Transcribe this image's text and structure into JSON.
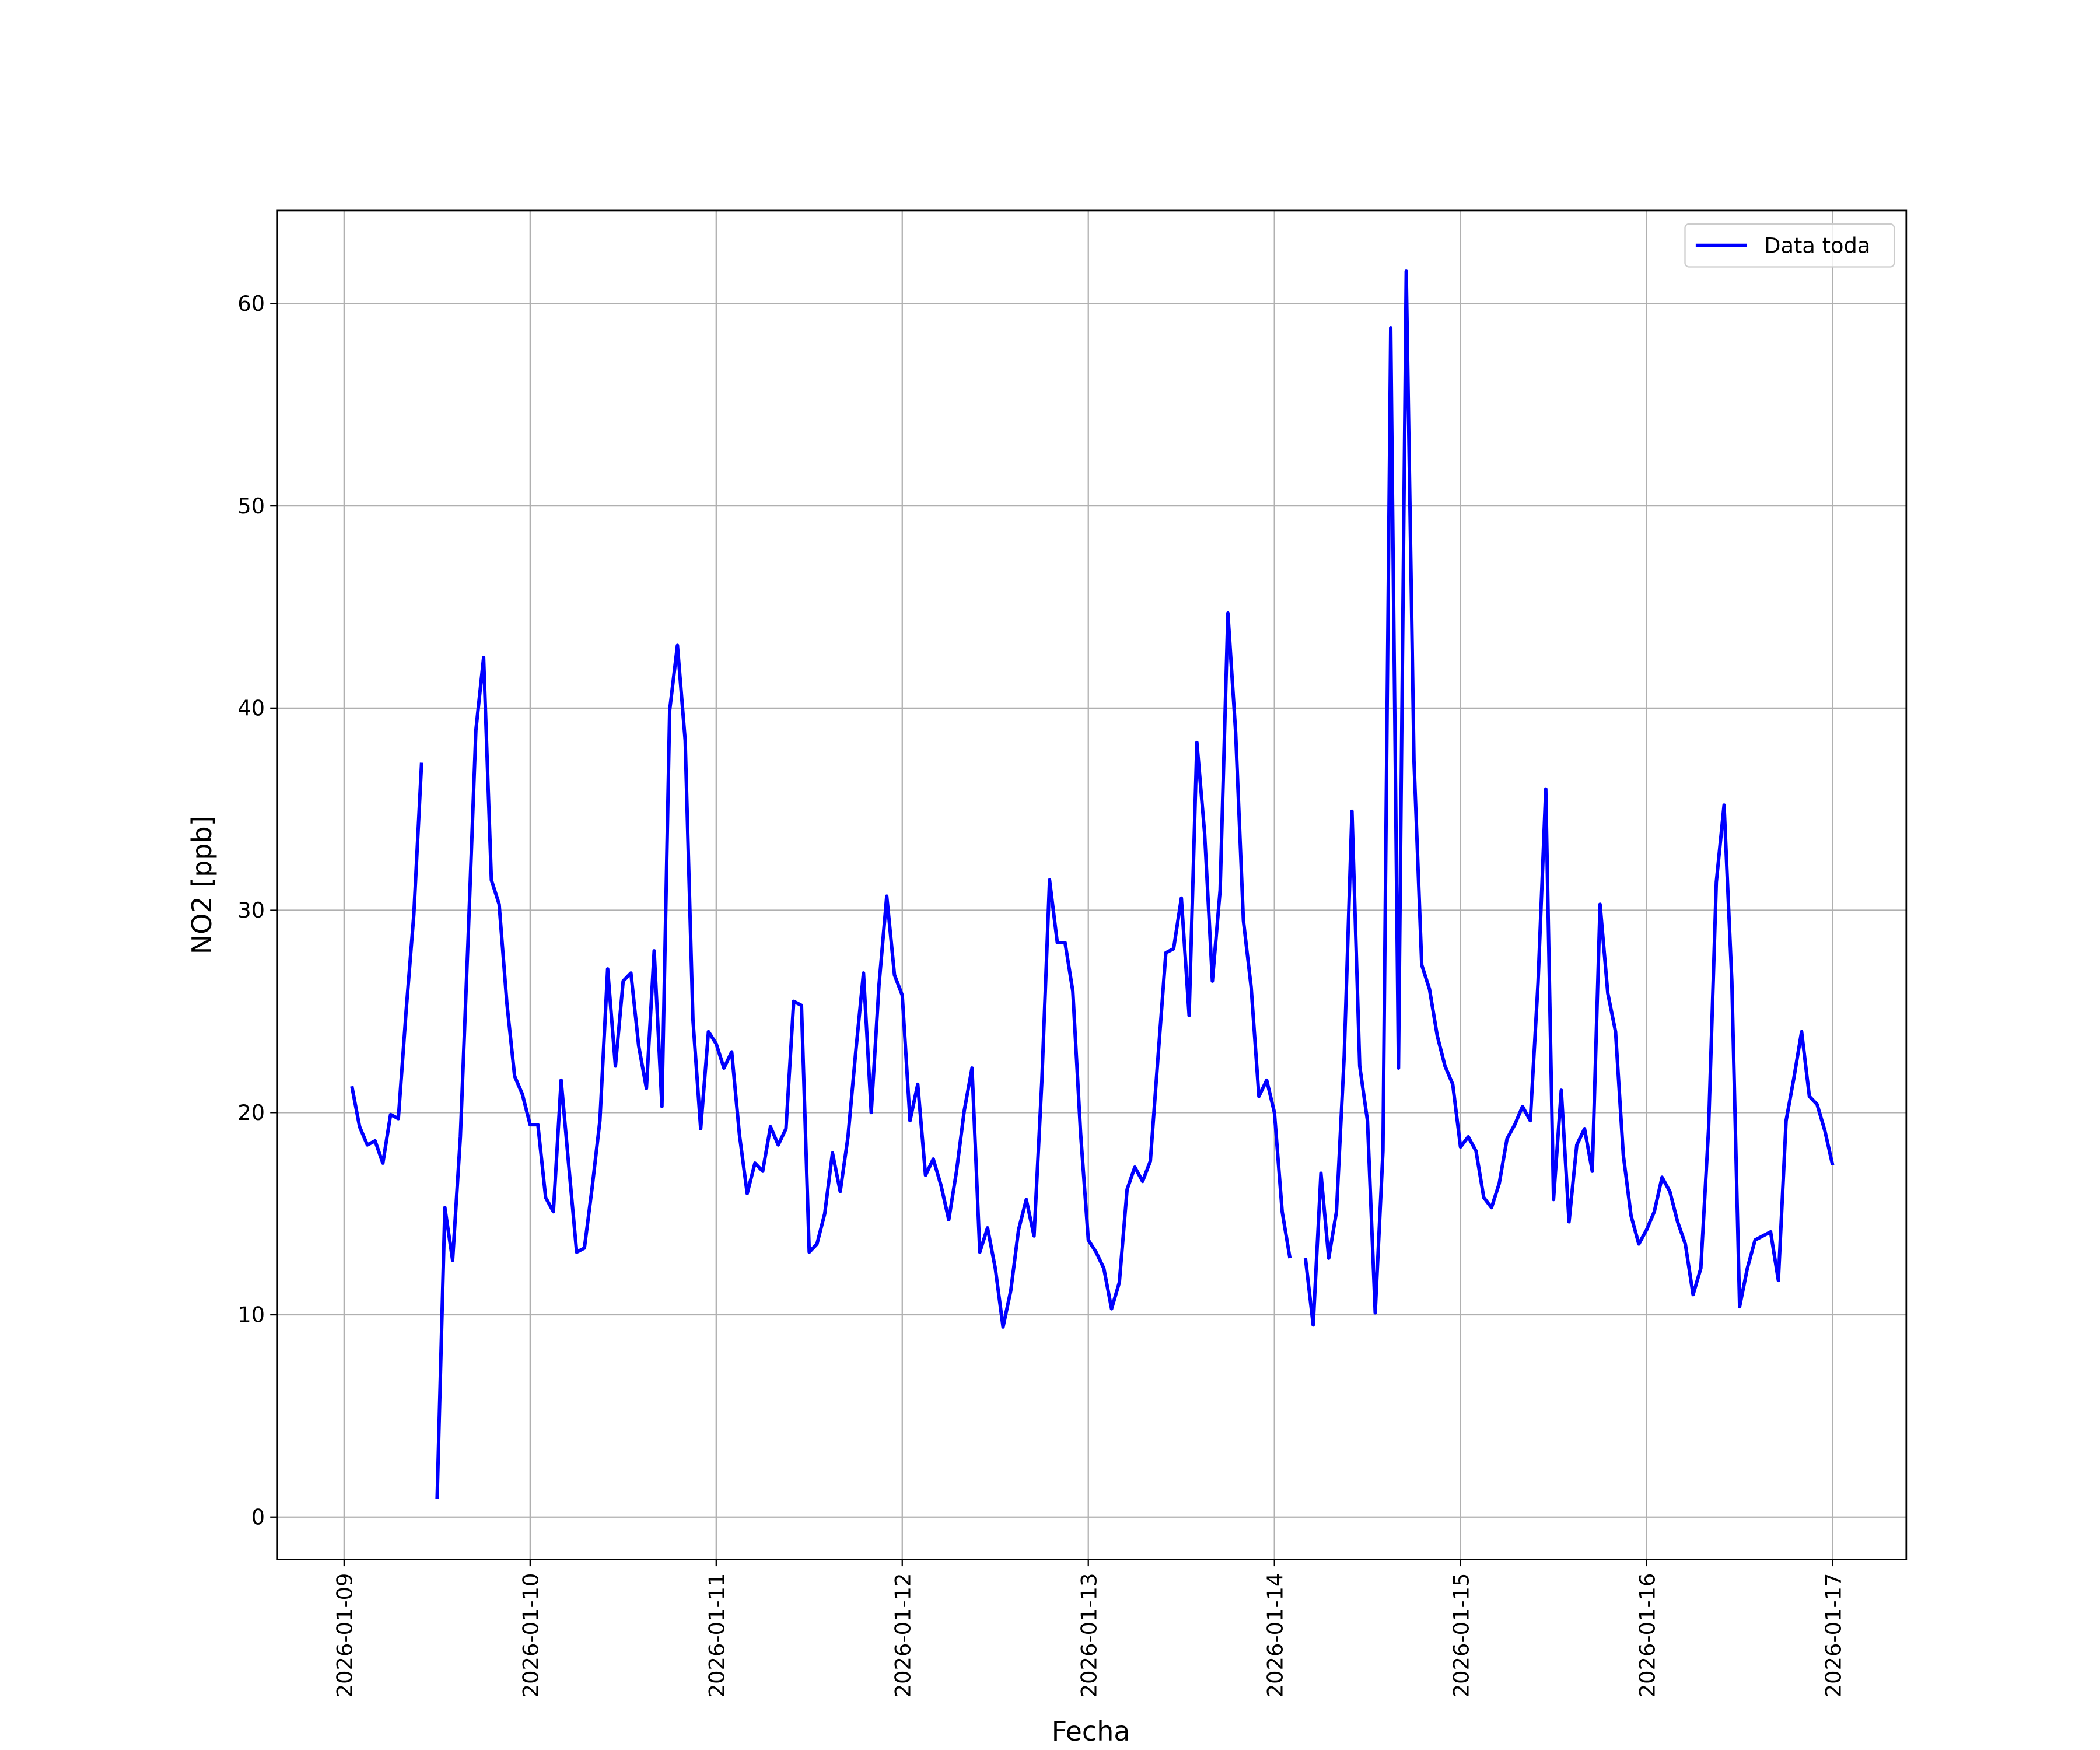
{
  "chart_data": {
    "type": "line",
    "xlabel": "Fecha",
    "ylabel": "NO2 [ppb]",
    "xlim": [
      "2026-01-08 15:20",
      "2026-01-17 09:30"
    ],
    "xticks": [
      "2026-01-09",
      "2026-01-10",
      "2026-01-11",
      "2026-01-12",
      "2026-01-13",
      "2026-01-14",
      "2026-01-15",
      "2026-01-16",
      "2026-01-17"
    ],
    "ylim": [
      -2.1,
      64.6
    ],
    "yticks": [
      0,
      10,
      20,
      30,
      40,
      50,
      60
    ],
    "grid": true,
    "legend": "upper right",
    "x": [
      "2026-01-09 01:00",
      "2026-01-09 02:00",
      "2026-01-09 03:00",
      "2026-01-09 04:00",
      "2026-01-09 05:00",
      "2026-01-09 06:00",
      "2026-01-09 07:00",
      "2026-01-09 08:00",
      "2026-01-09 09:00",
      "2026-01-09 10:00",
      "2026-01-09 11:00",
      "2026-01-09 12:00",
      "2026-01-09 13:00",
      "2026-01-09 14:00",
      "2026-01-09 15:00",
      "2026-01-09 16:00",
      "2026-01-09 17:00",
      "2026-01-09 18:00",
      "2026-01-09 19:00",
      "2026-01-09 20:00",
      "2026-01-09 21:00",
      "2026-01-09 22:00",
      "2026-01-09 23:00",
      "2026-01-10 00:00",
      "2026-01-10 01:00",
      "2026-01-10 02:00",
      "2026-01-10 03:00",
      "2026-01-10 04:00",
      "2026-01-10 05:00",
      "2026-01-10 06:00",
      "2026-01-10 07:00",
      "2026-01-10 08:00",
      "2026-01-10 09:00",
      "2026-01-10 10:00",
      "2026-01-10 11:00",
      "2026-01-10 12:00",
      "2026-01-10 13:00",
      "2026-01-10 14:00",
      "2026-01-10 15:00",
      "2026-01-10 16:00",
      "2026-01-10 17:00",
      "2026-01-10 18:00",
      "2026-01-10 19:00",
      "2026-01-10 20:00",
      "2026-01-10 21:00",
      "2026-01-10 22:00",
      "2026-01-10 23:00",
      "2026-01-11 00:00",
      "2026-01-11 01:00",
      "2026-01-11 02:00",
      "2026-01-11 03:00",
      "2026-01-11 04:00",
      "2026-01-11 05:00",
      "2026-01-11 06:00",
      "2026-01-11 07:00",
      "2026-01-11 08:00",
      "2026-01-11 09:00",
      "2026-01-11 10:00",
      "2026-01-11 11:00",
      "2026-01-11 12:00",
      "2026-01-11 13:00",
      "2026-01-11 14:00",
      "2026-01-11 15:00",
      "2026-01-11 16:00",
      "2026-01-11 17:00",
      "2026-01-11 18:00",
      "2026-01-11 19:00",
      "2026-01-11 20:00",
      "2026-01-11 21:00",
      "2026-01-11 22:00",
      "2026-01-11 23:00",
      "2026-01-12 00:00",
      "2026-01-12 01:00",
      "2026-01-12 02:00",
      "2026-01-12 03:00",
      "2026-01-12 04:00",
      "2026-01-12 05:00",
      "2026-01-12 06:00",
      "2026-01-12 07:00",
      "2026-01-12 08:00",
      "2026-01-12 09:00",
      "2026-01-12 10:00",
      "2026-01-12 11:00",
      "2026-01-12 12:00",
      "2026-01-12 13:00",
      "2026-01-12 14:00",
      "2026-01-12 15:00",
      "2026-01-12 16:00",
      "2026-01-12 17:00",
      "2026-01-12 18:00",
      "2026-01-12 19:00",
      "2026-01-12 20:00",
      "2026-01-12 21:00",
      "2026-01-12 22:00",
      "2026-01-12 23:00",
      "2026-01-13 00:00",
      "2026-01-13 01:00",
      "2026-01-13 02:00",
      "2026-01-13 03:00",
      "2026-01-13 04:00",
      "2026-01-13 05:00",
      "2026-01-13 06:00",
      "2026-01-13 07:00",
      "2026-01-13 08:00",
      "2026-01-13 09:00",
      "2026-01-13 10:00",
      "2026-01-13 11:00",
      "2026-01-13 12:00",
      "2026-01-13 13:00",
      "2026-01-13 14:00",
      "2026-01-13 15:00",
      "2026-01-13 16:00",
      "2026-01-13 17:00",
      "2026-01-13 18:00",
      "2026-01-13 19:00",
      "2026-01-13 20:00",
      "2026-01-13 21:00",
      "2026-01-13 22:00",
      "2026-01-13 23:00",
      "2026-01-14 00:00",
      "2026-01-14 01:00",
      "2026-01-14 02:00",
      "2026-01-14 03:00",
      "2026-01-14 04:00",
      "2026-01-14 05:00",
      "2026-01-14 06:00",
      "2026-01-14 07:00",
      "2026-01-14 08:00",
      "2026-01-14 09:00",
      "2026-01-14 10:00",
      "2026-01-14 11:00",
      "2026-01-14 12:00",
      "2026-01-14 13:00",
      "2026-01-14 14:00",
      "2026-01-14 15:00",
      "2026-01-14 16:00",
      "2026-01-14 17:00",
      "2026-01-14 18:00",
      "2026-01-14 19:00",
      "2026-01-14 20:00",
      "2026-01-14 21:00",
      "2026-01-14 22:00",
      "2026-01-14 23:00",
      "2026-01-15 00:00",
      "2026-01-15 01:00",
      "2026-01-15 02:00",
      "2026-01-15 03:00",
      "2026-01-15 04:00",
      "2026-01-15 05:00",
      "2026-01-15 06:00",
      "2026-01-15 07:00",
      "2026-01-15 08:00",
      "2026-01-15 09:00",
      "2026-01-15 10:00",
      "2026-01-15 11:00",
      "2026-01-15 12:00",
      "2026-01-15 13:00",
      "2026-01-15 14:00",
      "2026-01-15 15:00",
      "2026-01-15 16:00",
      "2026-01-15 17:00",
      "2026-01-15 18:00",
      "2026-01-15 19:00",
      "2026-01-15 20:00",
      "2026-01-15 21:00",
      "2026-01-15 22:00",
      "2026-01-15 23:00",
      "2026-01-16 00:00",
      "2026-01-16 01:00",
      "2026-01-16 02:00",
      "2026-01-16 03:00",
      "2026-01-16 04:00",
      "2026-01-16 05:00",
      "2026-01-16 06:00",
      "2026-01-16 07:00",
      "2026-01-16 08:00",
      "2026-01-16 09:00",
      "2026-01-16 10:00",
      "2026-01-16 11:00",
      "2026-01-16 12:00",
      "2026-01-16 13:00",
      "2026-01-16 14:00",
      "2026-01-16 15:00",
      "2026-01-16 16:00",
      "2026-01-16 17:00",
      "2026-01-16 18:00",
      "2026-01-16 19:00",
      "2026-01-16 20:00",
      "2026-01-16 21:00",
      "2026-01-16 22:00",
      "2026-01-16 23:00",
      "2026-01-17 00:00"
    ],
    "series": [
      {
        "name": "Data toda",
        "color": "#0000ff",
        "values": [
          21.3,
          19.3,
          18.4,
          18.6,
          17.5,
          19.9,
          19.7,
          25.0,
          29.8,
          37.3,
          null,
          0.9,
          15.3,
          12.7,
          18.8,
          28.6,
          38.9,
          42.5,
          31.5,
          30.3,
          25.4,
          21.8,
          20.9,
          19.4,
          19.4,
          15.8,
          15.1,
          21.6,
          17.3,
          13.1,
          13.3,
          16.3,
          19.6,
          27.1,
          22.3,
          26.5,
          26.9,
          23.3,
          21.2,
          28.0,
          20.3,
          39.9,
          43.1,
          38.4,
          24.6,
          19.2,
          24.0,
          23.4,
          22.2,
          23.0,
          18.9,
          16.0,
          17.5,
          17.1,
          19.3,
          18.4,
          19.2,
          25.5,
          25.3,
          13.1,
          13.5,
          15.0,
          18.0,
          16.1,
          18.8,
          23.0,
          26.9,
          20.0,
          26.3,
          30.7,
          26.8,
          25.8,
          19.6,
          21.4,
          16.9,
          17.7,
          16.4,
          14.7,
          17.1,
          20.1,
          22.2,
          13.1,
          14.3,
          12.3,
          9.4,
          11.2,
          14.2,
          15.7,
          13.9,
          21.5,
          31.5,
          28.4,
          28.4,
          26.0,
          19.0,
          13.7,
          13.1,
          12.3,
          10.3,
          11.6,
          16.2,
          17.3,
          16.6,
          17.6,
          22.8,
          27.9,
          28.1,
          30.6,
          24.8,
          38.3,
          33.8,
          26.5,
          31.0,
          44.7,
          38.8,
          29.5,
          26.2,
          20.8,
          21.6,
          20.0,
          15.1,
          12.8,
          null,
          12.8,
          9.5,
          17.0,
          12.8,
          15.1,
          22.8,
          34.9,
          22.3,
          19.6,
          10.1,
          18.1,
          58.8,
          22.2,
          61.6,
          37.4,
          27.3,
          26.1,
          23.8,
          22.3,
          21.4,
          18.3,
          18.8,
          18.1,
          15.8,
          15.3,
          16.5,
          18.7,
          19.4,
          20.3,
          19.6,
          26.4,
          36.0,
          15.7,
          21.1,
          14.6,
          18.4,
          19.2,
          17.1,
          30.3,
          25.9,
          24.0,
          17.9,
          14.9,
          13.5,
          14.2,
          15.1,
          16.8,
          16.1,
          14.6,
          13.5,
          11.0,
          12.3,
          19.2,
          31.4,
          35.2,
          26.5,
          10.4,
          12.3,
          13.7,
          13.9,
          14.1,
          11.7,
          19.6,
          21.7,
          24.0,
          20.8,
          20.4,
          19.1,
          17.4
        ]
      }
    ]
  }
}
